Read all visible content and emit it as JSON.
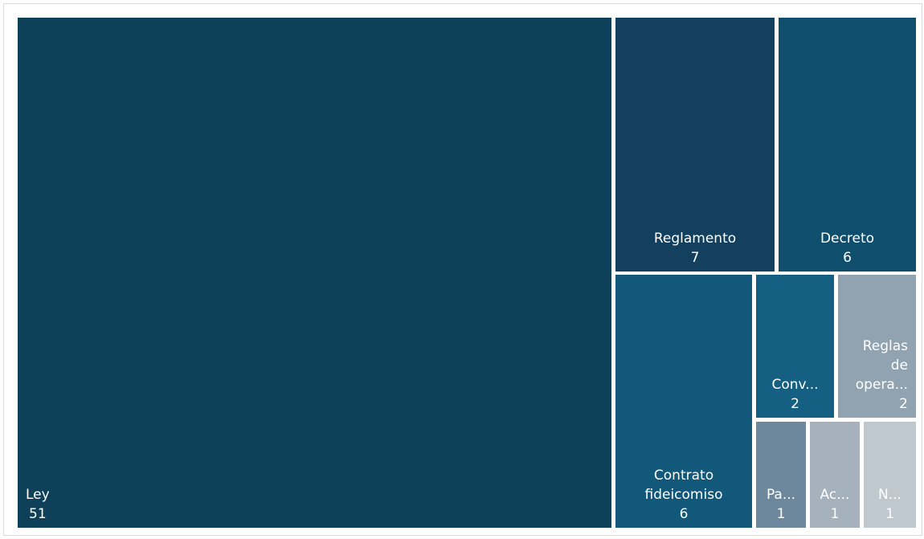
{
  "chart_data": {
    "type": "treemap",
    "title": "",
    "items": [
      {
        "label": "Ley",
        "display_label": [
          "Ley"
        ],
        "value": 51,
        "color": "#0e4159",
        "label_align": "left"
      },
      {
        "label": "Reglamento",
        "display_label": [
          "Reglamento"
        ],
        "value": 7,
        "color": "#12405e",
        "label_align": "center"
      },
      {
        "label": "Decreto",
        "display_label": [
          "Decreto"
        ],
        "value": 6,
        "color": "#0f4f6d",
        "label_align": "center"
      },
      {
        "label": "Contrato fideicomiso",
        "display_label": [
          "Contrato",
          "fideicomiso"
        ],
        "value": 6,
        "color": "#11587b",
        "label_align": "center"
      },
      {
        "label": "Conv...",
        "display_label": [
          "Conv..."
        ],
        "value": 2,
        "color": "#155f82",
        "label_align": "center"
      },
      {
        "label": "Reglas de opera...",
        "display_label": [
          "Reglas",
          "de",
          "opera..."
        ],
        "value": 2,
        "color": "#91a3b0",
        "label_align": "right"
      },
      {
        "label": "Pa...",
        "display_label": [
          "Pa..."
        ],
        "value": 1,
        "color": "#6d889c",
        "label_align": "center"
      },
      {
        "label": "Ac...",
        "display_label": [
          "Ac..."
        ],
        "value": 1,
        "color": "#a5b1bc",
        "label_align": "center"
      },
      {
        "label": "N...",
        "display_label": [
          "N..."
        ],
        "value": 1,
        "color": "#c0c8cf",
        "label_align": "center"
      }
    ]
  }
}
